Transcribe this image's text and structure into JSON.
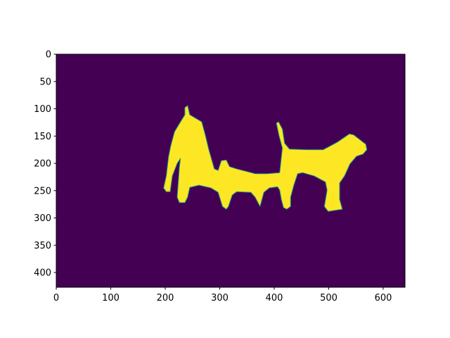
{
  "chart_data": {
    "type": "heatmap",
    "title": "",
    "xlabel": "",
    "ylabel": "",
    "image_size": [
      640,
      427
    ],
    "xlim": [
      0,
      640
    ],
    "ylim": [
      427,
      0
    ],
    "y_inverted": true,
    "grid": false,
    "colormap": "viridis",
    "values_range": [
      0,
      1
    ],
    "colors": {
      "background_value_0": "#440154",
      "foreground_value_1": "#fde725",
      "edge": "#21918c"
    },
    "x_ticks": [
      "0",
      "100",
      "200",
      "300",
      "400",
      "500",
      "600"
    ],
    "y_ticks": [
      "0",
      "50",
      "100",
      "150",
      "200",
      "250",
      "300",
      "350",
      "400"
    ],
    "mask_outline": [
      [
        241,
        94
      ],
      [
        245,
        111
      ],
      [
        267,
        124
      ],
      [
        273,
        146
      ],
      [
        280,
        175
      ],
      [
        290,
        210
      ],
      [
        297,
        213
      ],
      [
        303,
        195
      ],
      [
        312,
        194
      ],
      [
        318,
        206
      ],
      [
        331,
        210
      ],
      [
        365,
        219
      ],
      [
        387,
        219
      ],
      [
        410,
        217
      ],
      [
        415,
        172
      ],
      [
        409,
        150
      ],
      [
        404,
        126
      ],
      [
        408,
        124
      ],
      [
        415,
        137
      ],
      [
        419,
        163
      ],
      [
        428,
        174
      ],
      [
        460,
        175
      ],
      [
        490,
        175
      ],
      [
        516,
        161
      ],
      [
        538,
        146
      ],
      [
        546,
        148
      ],
      [
        568,
        165
      ],
      [
        570,
        175
      ],
      [
        563,
        183
      ],
      [
        551,
        187
      ],
      [
        539,
        201
      ],
      [
        529,
        223
      ],
      [
        520,
        236
      ],
      [
        520,
        266
      ],
      [
        525,
        284
      ],
      [
        512,
        286
      ],
      [
        499,
        288
      ],
      [
        492,
        279
      ],
      [
        497,
        249
      ],
      [
        494,
        234
      ],
      [
        473,
        223
      ],
      [
        452,
        217
      ],
      [
        443,
        219
      ],
      [
        436,
        240
      ],
      [
        430,
        262
      ],
      [
        430,
        279
      ],
      [
        423,
        284
      ],
      [
        417,
        281
      ],
      [
        413,
        266
      ],
      [
        410,
        249
      ],
      [
        406,
        243
      ],
      [
        391,
        245
      ],
      [
        381,
        253
      ],
      [
        374,
        279
      ],
      [
        365,
        262
      ],
      [
        357,
        253
      ],
      [
        331,
        252
      ],
      [
        323,
        258
      ],
      [
        316,
        279
      ],
      [
        312,
        284
      ],
      [
        305,
        279
      ],
      [
        297,
        253
      ],
      [
        284,
        245
      ],
      [
        262,
        240
      ],
      [
        245,
        244
      ],
      [
        241,
        262
      ],
      [
        236,
        272
      ],
      [
        226,
        272
      ],
      [
        222,
        262
      ],
      [
        226,
        206
      ],
      [
        228,
        191
      ],
      [
        222,
        200
      ],
      [
        213,
        223
      ],
      [
        209,
        252
      ],
      [
        202,
        252
      ],
      [
        197,
        245
      ],
      [
        202,
        223
      ],
      [
        206,
        188
      ],
      [
        210,
        168
      ],
      [
        217,
        142
      ],
      [
        228,
        124
      ],
      [
        236,
        111
      ],
      [
        236,
        98
      ]
    ]
  }
}
